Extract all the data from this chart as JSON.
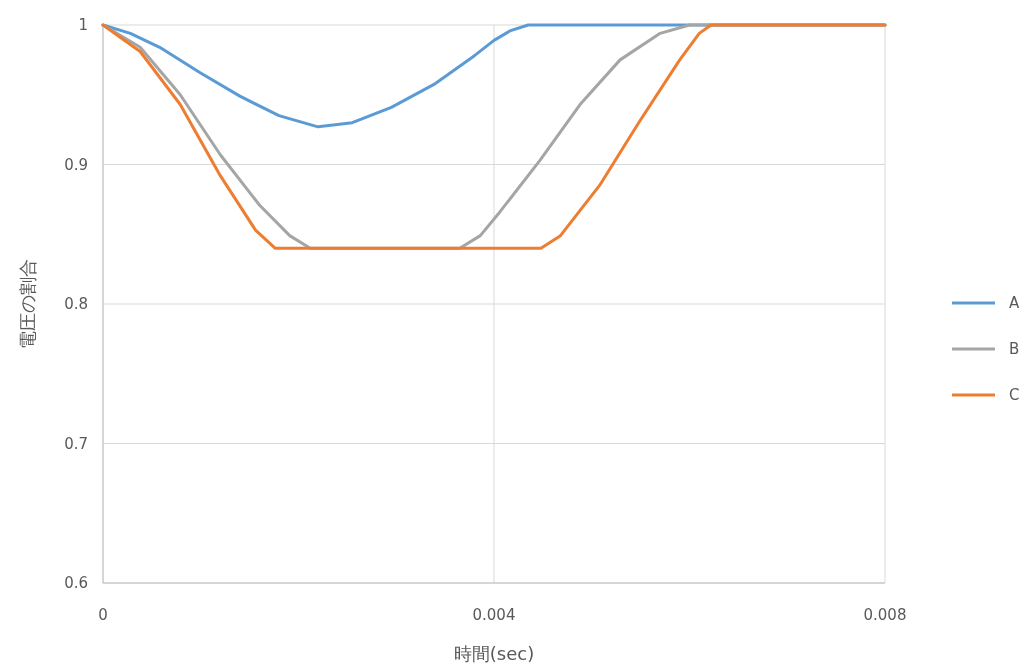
{
  "chart_data": {
    "type": "line",
    "xlabel": "時間(sec)",
    "ylabel": "電圧の割合",
    "xlim": [
      0,
      0.008
    ],
    "ylim": [
      0.6,
      1
    ],
    "xticks": [
      0,
      0.004,
      0.008
    ],
    "yticks": [
      0.6,
      0.7,
      0.8,
      0.9,
      1
    ],
    "grid": true,
    "legend": "right",
    "marker": "none",
    "line_style": "solid",
    "series": [
      {
        "name": "A",
        "color": "#5b9bd5",
        "x": [
          0,
          0.00028,
          0.00058,
          0.00099,
          0.0014,
          0.0018,
          0.0022,
          0.00255,
          0.00295,
          0.0034,
          0.0038,
          0.004,
          0.00417,
          0.00435,
          0.008
        ],
        "values": [
          1,
          0.994,
          0.984,
          0.966,
          0.949,
          0.935,
          0.927,
          0.93,
          0.941,
          0.958,
          0.978,
          0.989,
          0.996,
          1,
          1
        ]
      },
      {
        "name": "B",
        "color": "#a5a5a5",
        "x": [
          0,
          0.00038,
          0.00079,
          0.0012,
          0.0016,
          0.00191,
          0.00212,
          0.00365,
          0.00386,
          0.00406,
          0.00447,
          0.00488,
          0.00529,
          0.0057,
          0.006,
          0.008
        ],
        "values": [
          1,
          0.984,
          0.95,
          0.907,
          0.871,
          0.849,
          0.84,
          0.84,
          0.849,
          0.866,
          0.903,
          0.943,
          0.975,
          0.994,
          1,
          1
        ]
      },
      {
        "name": "C",
        "color": "#ed7d31",
        "x": [
          0,
          0.00038,
          0.00079,
          0.0012,
          0.00156,
          0.00176,
          0.00448,
          0.00468,
          0.00508,
          0.00549,
          0.0059,
          0.0061,
          0.00622,
          0.008
        ],
        "values": [
          1,
          0.981,
          0.943,
          0.892,
          0.853,
          0.84,
          0.84,
          0.849,
          0.885,
          0.931,
          0.975,
          0.994,
          1,
          1
        ]
      }
    ]
  }
}
